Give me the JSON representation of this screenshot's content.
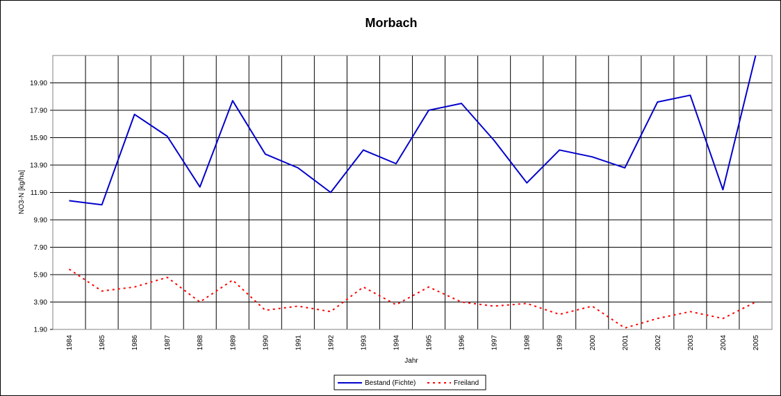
{
  "chart_data": {
    "type": "line",
    "title": "Morbach",
    "xlabel": "Jahr",
    "ylabel": "NO3-N [kg/ha]",
    "x": [
      "1984",
      "1985",
      "1986",
      "1987",
      "1988",
      "1989",
      "1990",
      "1991",
      "1992",
      "1993",
      "1994",
      "1995",
      "1996",
      "1997",
      "1998",
      "1999",
      "2000",
      "2001",
      "2002",
      "2003",
      "2004",
      "2005"
    ],
    "yticks": [
      "1.90",
      "3.90",
      "5.90",
      "7.90",
      "9.90",
      "11.90",
      "13.90",
      "15.90",
      "17.90",
      "19.90"
    ],
    "ylim": [
      1.9,
      21.9
    ],
    "grid": true,
    "legend_position": "bottom",
    "series": [
      {
        "name": "Bestand (Fichte)",
        "color": "#0000cc",
        "style": "solid",
        "values": [
          11.3,
          11.0,
          17.6,
          16.0,
          12.3,
          18.6,
          14.7,
          13.7,
          11.9,
          15.0,
          14.0,
          17.9,
          18.4,
          15.7,
          12.6,
          15.0,
          14.5,
          13.7,
          18.5,
          19.0,
          12.1,
          21.9
        ]
      },
      {
        "name": "Freiland",
        "color": "#ff0000",
        "style": "dotted",
        "values": [
          6.3,
          4.7,
          5.0,
          5.7,
          3.9,
          5.5,
          3.3,
          3.6,
          3.2,
          5.0,
          3.7,
          5.0,
          3.9,
          3.6,
          3.8,
          3.0,
          3.6,
          2.0,
          2.7,
          3.2,
          2.7,
          3.9
        ]
      }
    ]
  }
}
